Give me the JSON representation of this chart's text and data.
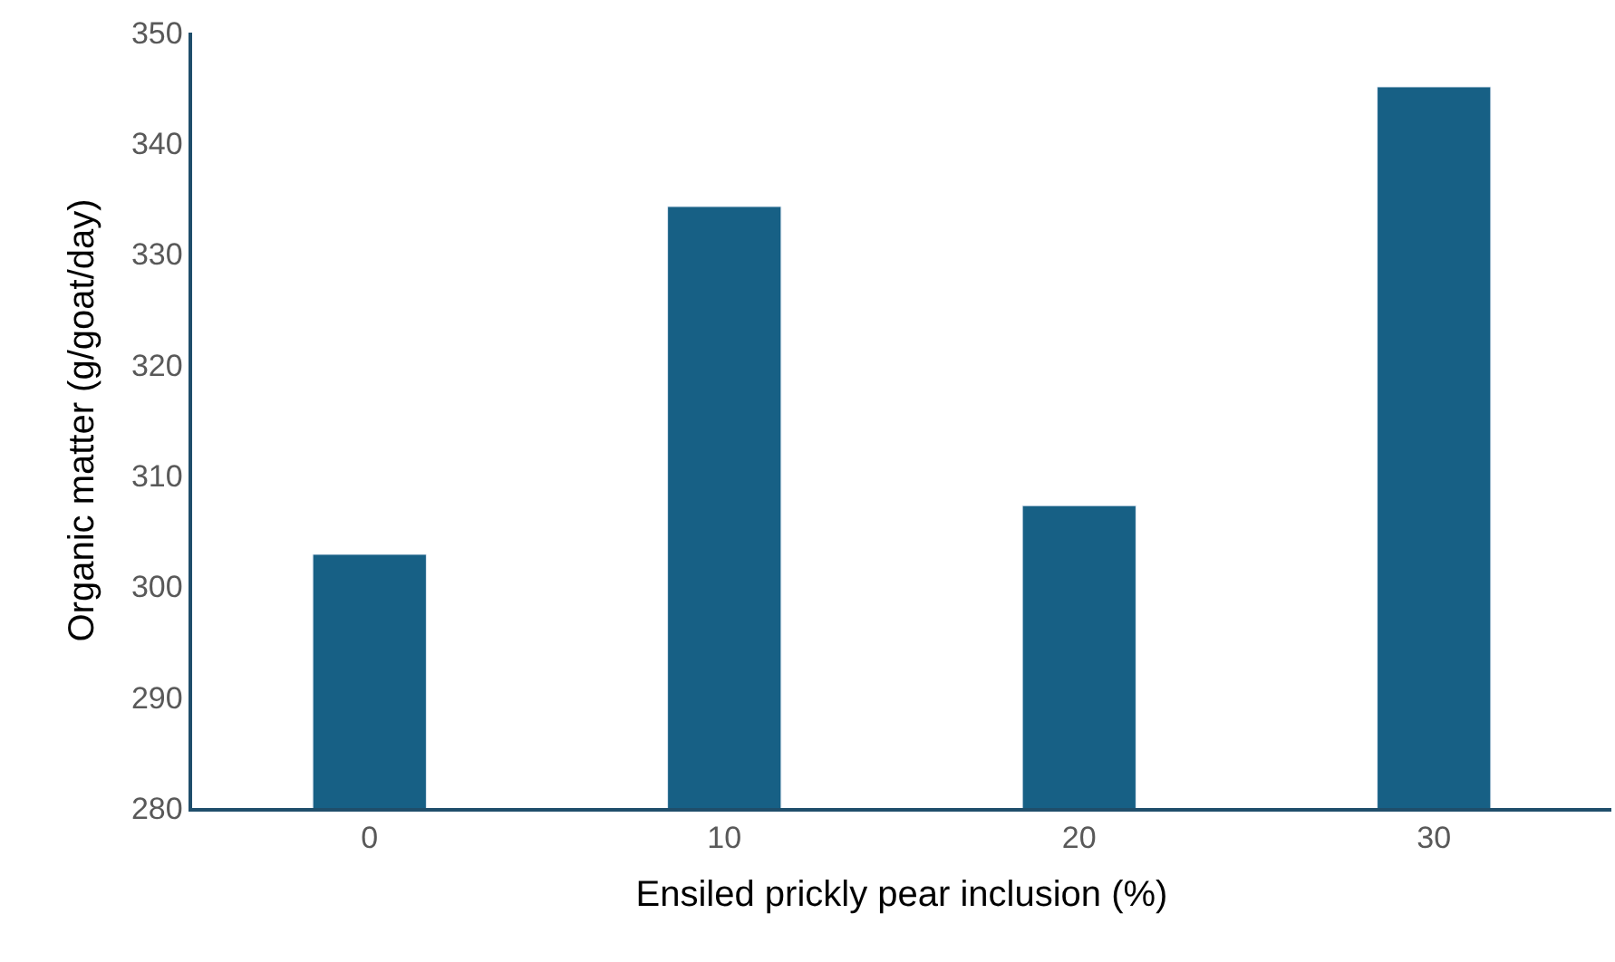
{
  "chart_data": {
    "type": "bar",
    "xlabel": "Ensiled prickly pear inclusion (%)",
    "ylabel": "Organic matter (g/goat/day)",
    "categories": [
      "0",
      "10",
      "20",
      "30"
    ],
    "values": [
      302.9,
      334.3,
      307.3,
      345.1
    ],
    "color": "#176085",
    "ylim": [
      280,
      350
    ],
    "yticks": [
      280,
      290,
      300,
      310,
      320,
      330,
      340,
      350
    ],
    "grid": false
  }
}
